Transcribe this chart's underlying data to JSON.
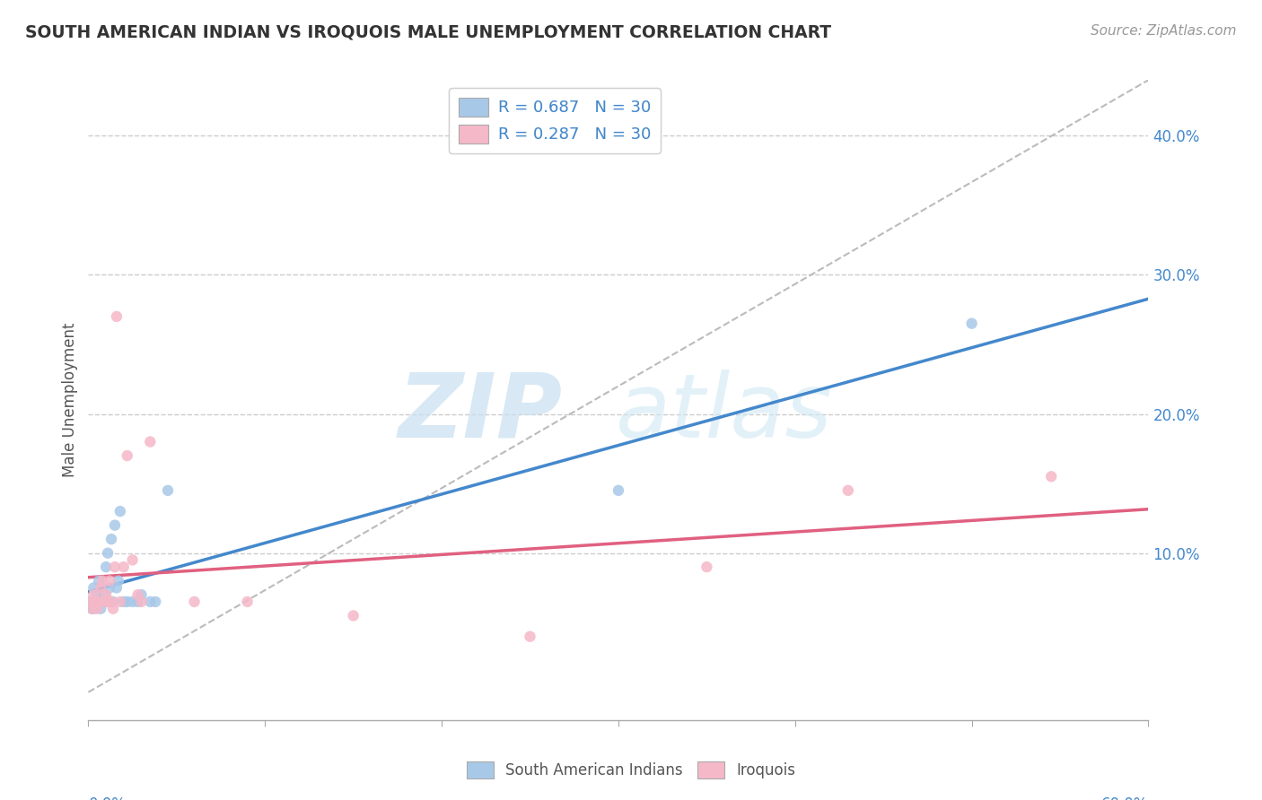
{
  "title": "SOUTH AMERICAN INDIAN VS IROQUOIS MALE UNEMPLOYMENT CORRELATION CHART",
  "source": "Source: ZipAtlas.com",
  "ylabel": "Male Unemployment",
  "right_yticks": [
    "40.0%",
    "30.0%",
    "20.0%",
    "10.0%"
  ],
  "right_ytick_vals": [
    0.4,
    0.3,
    0.2,
    0.1
  ],
  "legend1_text": "R = 0.687   N = 30",
  "legend2_text": "R = 0.287   N = 30",
  "legend_bottom": [
    "South American Indians",
    "Iroquois"
  ],
  "blue_scatter_color": "#a8c8e8",
  "pink_scatter_color": "#f5b8c8",
  "blue_line_color": "#4488cc",
  "pink_line_color": "#e06080",
  "dashed_line_color": "#bbbbbb",
  "xlim": [
    0.0,
    0.6
  ],
  "ylim": [
    -0.02,
    0.44
  ],
  "sa_x": [
    0.001,
    0.002,
    0.003,
    0.003,
    0.004,
    0.005,
    0.006,
    0.007,
    0.008,
    0.009,
    0.01,
    0.01,
    0.011,
    0.012,
    0.013,
    0.014,
    0.015,
    0.016,
    0.017,
    0.018,
    0.02,
    0.022,
    0.025,
    0.028,
    0.03,
    0.035,
    0.038,
    0.045,
    0.3,
    0.5
  ],
  "sa_y": [
    0.065,
    0.06,
    0.075,
    0.06,
    0.065,
    0.07,
    0.08,
    0.06,
    0.065,
    0.07,
    0.09,
    0.065,
    0.1,
    0.075,
    0.11,
    0.065,
    0.12,
    0.075,
    0.08,
    0.13,
    0.065,
    0.065,
    0.065,
    0.065,
    0.07,
    0.065,
    0.065,
    0.145,
    0.145,
    0.265
  ],
  "ir_x": [
    0.001,
    0.002,
    0.003,
    0.004,
    0.005,
    0.006,
    0.007,
    0.008,
    0.009,
    0.01,
    0.011,
    0.012,
    0.013,
    0.014,
    0.015,
    0.016,
    0.018,
    0.02,
    0.022,
    0.025,
    0.028,
    0.03,
    0.035,
    0.06,
    0.09,
    0.15,
    0.25,
    0.35,
    0.43,
    0.545
  ],
  "ir_y": [
    0.065,
    0.06,
    0.07,
    0.065,
    0.06,
    0.065,
    0.075,
    0.08,
    0.065,
    0.07,
    0.065,
    0.08,
    0.065,
    0.06,
    0.09,
    0.27,
    0.065,
    0.09,
    0.17,
    0.095,
    0.07,
    0.065,
    0.18,
    0.065,
    0.065,
    0.055,
    0.04,
    0.09,
    0.145,
    0.155
  ],
  "xtick_positions": [
    0.0,
    0.1,
    0.2,
    0.3,
    0.4,
    0.5,
    0.6
  ],
  "ytick_horiz": [
    0.1,
    0.2,
    0.3,
    0.4
  ]
}
